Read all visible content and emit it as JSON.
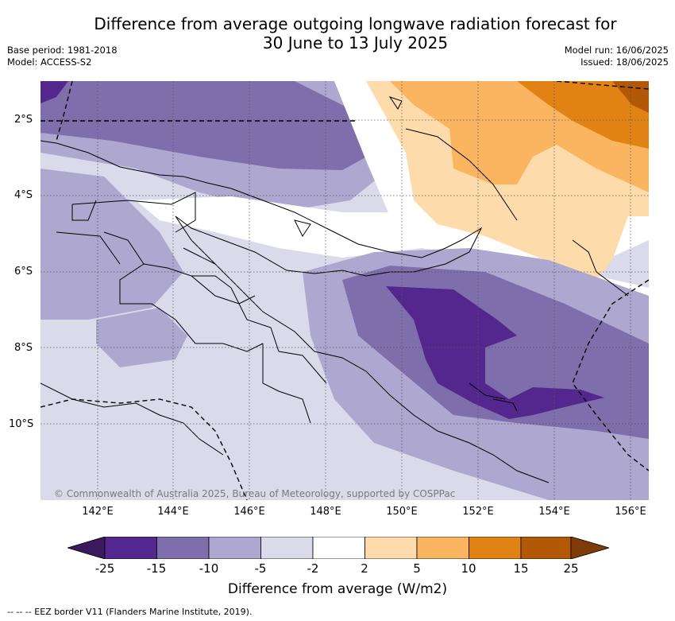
{
  "title_line1": "Difference from average outgoing longwave radiation forecast for",
  "title_line2": "30 June to 13 July 2025",
  "base_period": "Base period: 1981-2018",
  "model": "Model: ACCESS-S2",
  "model_run": "Model run: 16/06/2025",
  "issued": "Issued: 18/06/2025",
  "lat_labels": [
    "2°S",
    "4°S",
    "6°S",
    "8°S",
    "10°S"
  ],
  "lon_labels": [
    "142°E",
    "144°E",
    "146°E",
    "148°E",
    "150°E",
    "152°E",
    "154°E",
    "156°E"
  ],
  "copyright": "© Commonwealth of Australia 2025, Bureau of Meteorology, supported by COSPPac",
  "colorbar": {
    "label": "Difference from average (W/m2)",
    "ticks": [
      "-25",
      "-15",
      "-10",
      "-5",
      "-2",
      "2",
      "5",
      "10",
      "15",
      "25"
    ],
    "colors": [
      "#3a1a5e",
      "#54278f",
      "#7e6eab",
      "#aea7d0",
      "#dadaeb",
      "#ffffff",
      "#fddbab",
      "#fbb561",
      "#e08214",
      "#b35806",
      "#7f3b08"
    ]
  },
  "eez_legend": "-- -- -- EEZ border V11 (Flanders Marine Institute, 2019)."
}
